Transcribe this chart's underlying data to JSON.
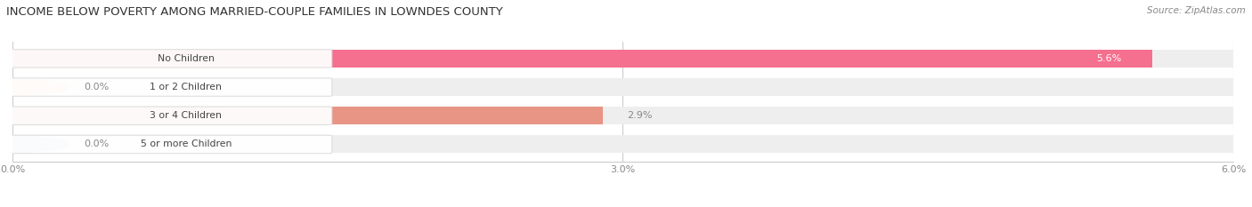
{
  "title": "INCOME BELOW POVERTY AMONG MARRIED-COUPLE FAMILIES IN LOWNDES COUNTY",
  "source": "Source: ZipAtlas.com",
  "categories": [
    "No Children",
    "1 or 2 Children",
    "3 or 4 Children",
    "5 or more Children"
  ],
  "values": [
    5.6,
    0.0,
    2.9,
    0.0
  ],
  "bar_colors": [
    "#F56F8F",
    "#F0BF8A",
    "#E89585",
    "#A8C4E0"
  ],
  "dot_colors": [
    "#F56F8F",
    "#F0BF8A",
    "#E89585",
    "#A8C4E0"
  ],
  "bar_bg_color": "#EEEEEE",
  "xlim": [
    0,
    6.0
  ],
  "xticks": [
    0.0,
    3.0,
    6.0
  ],
  "xtick_labels": [
    "0.0%",
    "3.0%",
    "6.0%"
  ],
  "title_color": "#333333",
  "source_color": "#888888",
  "value_inside_bar_color": "#FFFFFF",
  "value_outside_bar_color": "#888888",
  "label_text_color": "#444444",
  "figsize": [
    14.06,
    2.33
  ],
  "dpi": 100
}
